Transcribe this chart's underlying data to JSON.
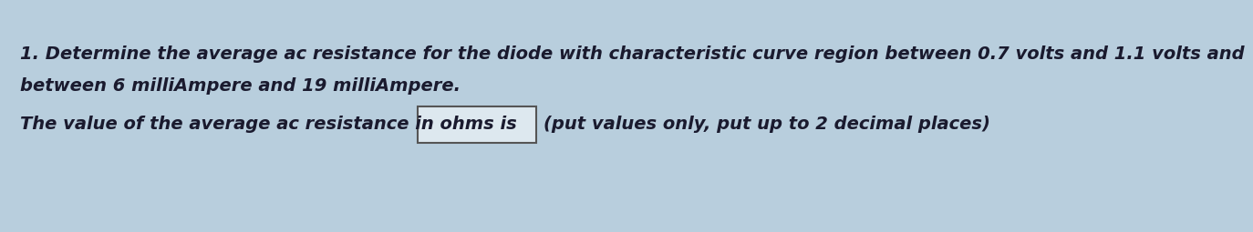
{
  "background_color": "#b8cedd",
  "line1": "1. Determine the average ac resistance for the diode with characteristic curve region between 0.7 volts and 1.1 volts and",
  "line2": "between 6 milliAmpere and 19 milliAmpere.",
  "line3_pre": "The value of the average ac resistance in ohms is",
  "line3_post": "(put values only, put up to 2 decimal places)",
  "text_color": "#1a1a2e",
  "font_size_main": 14.0,
  "box_facecolor": "#dde8ef",
  "box_edgecolor": "#555555"
}
